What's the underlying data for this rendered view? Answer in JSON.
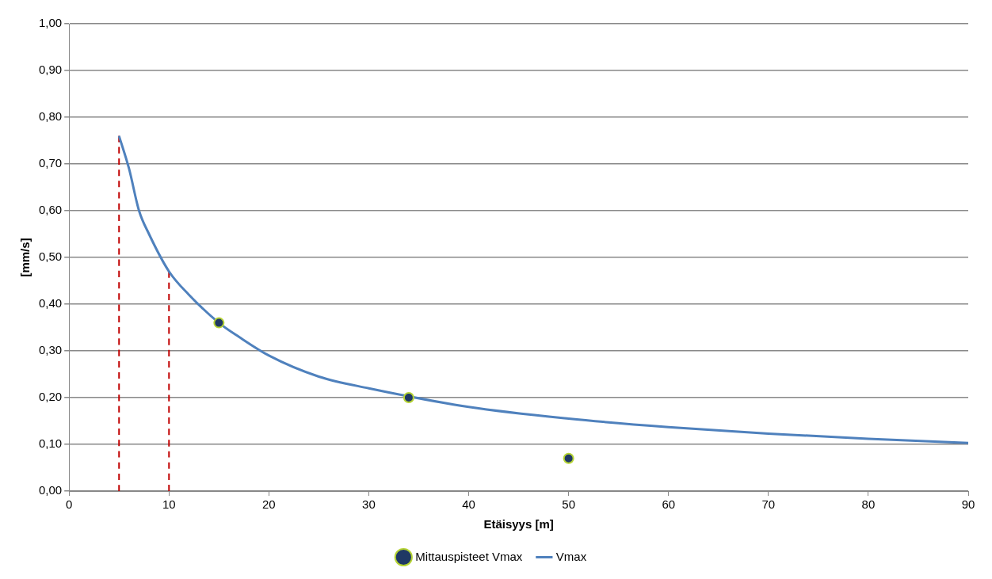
{
  "chart_data": {
    "type": "line",
    "xlabel": "Etäisyys [m]",
    "ylabel": "[mm/s]",
    "xlim": [
      0,
      90
    ],
    "ylim": [
      0,
      1
    ],
    "xticks": [
      0,
      10,
      20,
      30,
      40,
      50,
      60,
      70,
      80,
      90
    ],
    "yticks": [
      {
        "value": 0,
        "label": "0,00"
      },
      {
        "value": 0.1,
        "label": "0,10"
      },
      {
        "value": 0.2,
        "label": "0,20"
      },
      {
        "value": 0.3,
        "label": "0,30"
      },
      {
        "value": 0.4,
        "label": "0,40"
      },
      {
        "value": 0.5,
        "label": "0,50"
      },
      {
        "value": 0.6,
        "label": "0,60"
      },
      {
        "value": 0.7,
        "label": "0,70"
      },
      {
        "value": 0.8,
        "label": "0,80"
      },
      {
        "value": 0.9,
        "label": "0,90"
      },
      {
        "value": 1,
        "label": "1,00"
      }
    ],
    "grid": "y",
    "legend": "bottom",
    "series": [
      {
        "name": "Mittauspisteet Vmax",
        "type": "scatter",
        "marker": "circle",
        "color": "#1f3864",
        "x": [
          15,
          34,
          50
        ],
        "values": [
          0.36,
          0.2,
          0.07
        ]
      },
      {
        "name": "Vmax",
        "type": "line",
        "marker": "none",
        "line_style": "solid",
        "color": "#4f81bd",
        "x": [
          5,
          6,
          7,
          8,
          10,
          12,
          15,
          17,
          20,
          25,
          30,
          40,
          50,
          60,
          70,
          80,
          90
        ],
        "values": [
          0.76,
          0.69,
          0.6,
          0.55,
          0.47,
          0.42,
          0.36,
          0.33,
          0.29,
          0.245,
          0.22,
          0.18,
          0.155,
          0.137,
          0.123,
          0.112,
          0.103
        ]
      },
      {
        "type": "line",
        "marker": "none",
        "line_style": "dashed",
        "color": "#c00000",
        "x": [
          5,
          5
        ],
        "values": [
          0,
          0.76
        ]
      },
      {
        "type": "line",
        "marker": "none",
        "line_style": "dashed",
        "color": "#c00000",
        "x": [
          10,
          10
        ],
        "values": [
          0,
          0.47
        ]
      }
    ]
  }
}
